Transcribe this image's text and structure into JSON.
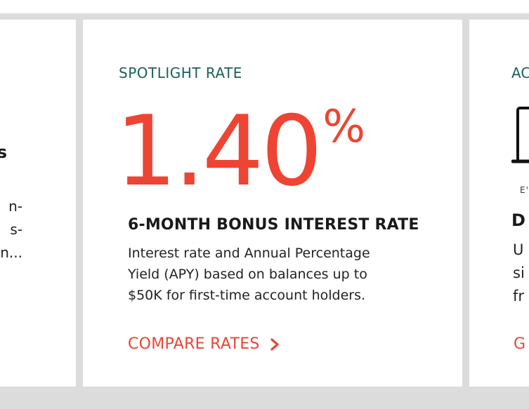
{
  "colors": {
    "accent": "#ee4433",
    "eyebrow": "#1b5f5a",
    "background": "#dcdcdc",
    "card": "#ffffff"
  },
  "left_card": {
    "title_fragment": "s",
    "desc_lines": [
      "n-",
      "s-",
      "n..."
    ]
  },
  "main_card": {
    "eyebrow": "SPOTLIGHT RATE",
    "rate_value": "1.40",
    "rate_unit": "%",
    "title": "6-MONTH BONUS INTEREST RATE",
    "desc_lines": [
      "Interest rate and Annual Percentage",
      "Yield (APY) based on balances up to",
      "$50K for first-time account holders."
    ],
    "cta_label": "COMPARE RATES",
    "cta_icon": "chevron-right-icon"
  },
  "right_card": {
    "eyebrow": "AC",
    "device_icon": "mobile-device-icon",
    "caption": "E'",
    "title_fragment": "D",
    "desc_lines": [
      "U",
      "si",
      "fr"
    ],
    "cta_fragment": "G"
  }
}
